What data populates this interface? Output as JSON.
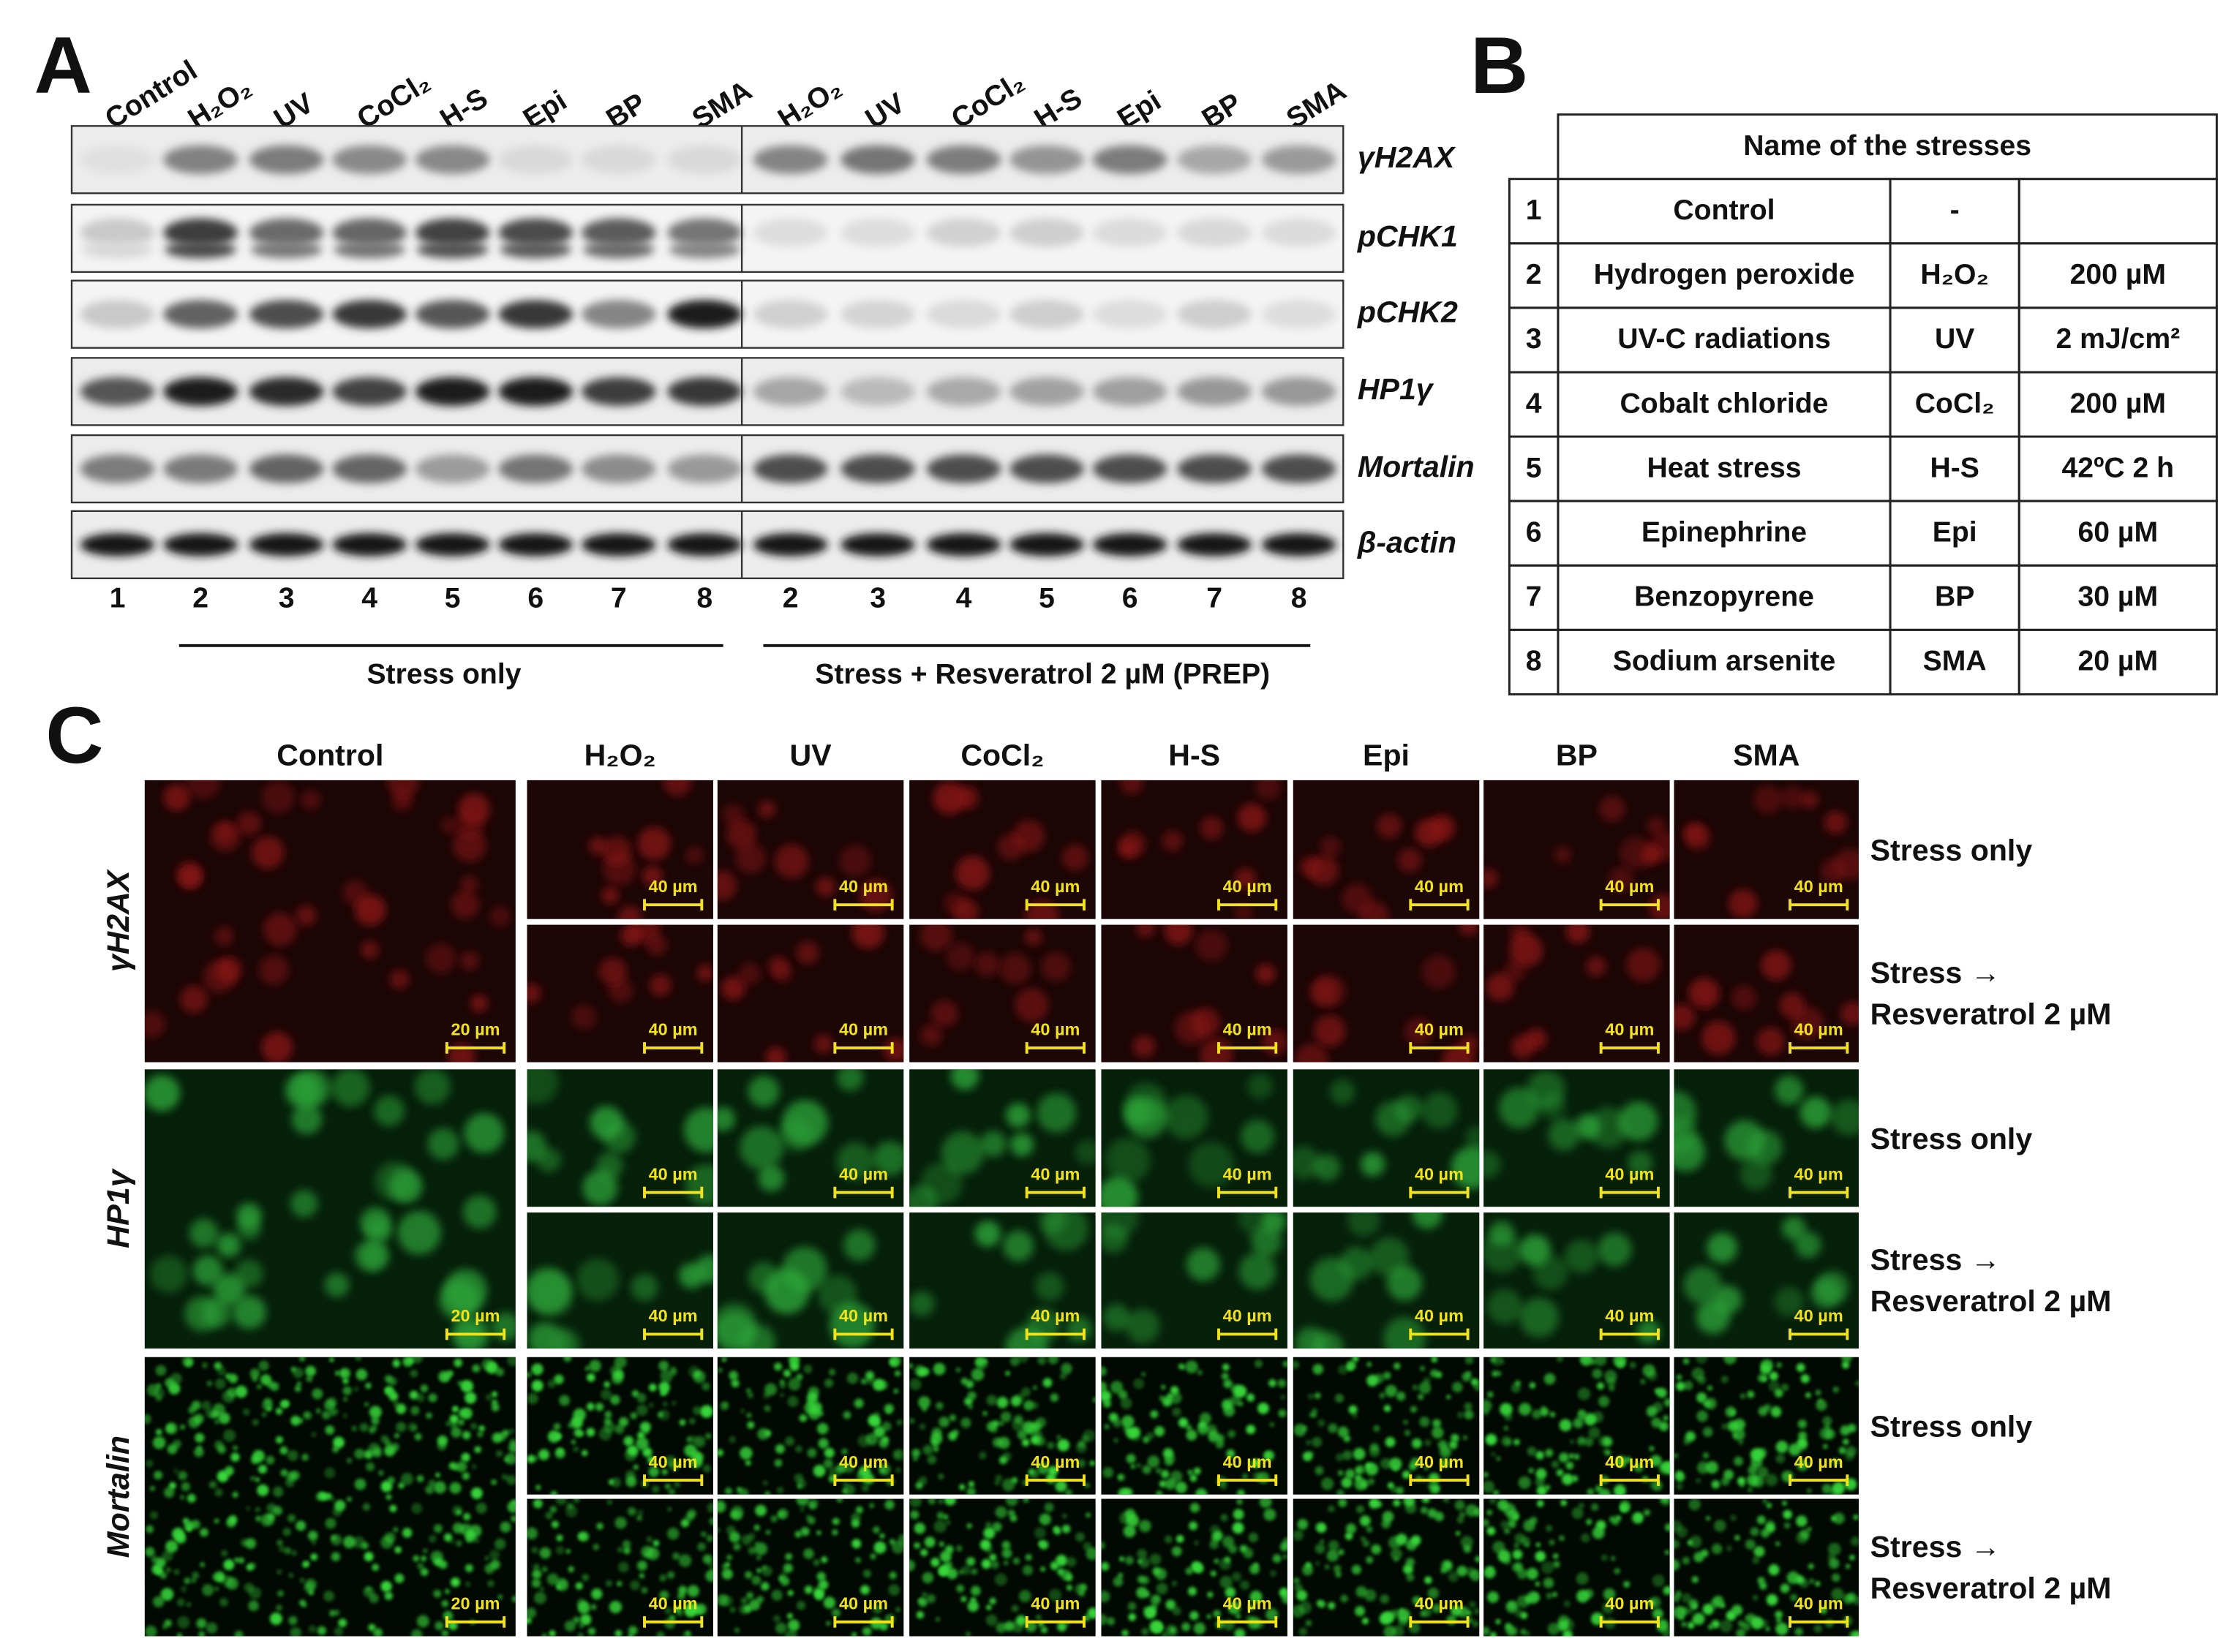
{
  "panel_a": {
    "label": "A",
    "lanes": [
      "Control",
      "H₂O₂",
      "UV",
      "CoCl₂",
      "H-S",
      "Epi",
      "BP",
      "SMA",
      "H₂O₂",
      "UV",
      "CoCl₂",
      "H-S",
      "Epi",
      "BP",
      "SMA"
    ],
    "blots": [
      "γH2AX",
      "pCHK1",
      "pCHK2",
      "HP1γ",
      "Mortalin",
      "β-actin"
    ],
    "lane_numbers": [
      1,
      2,
      3,
      4,
      5,
      6,
      7,
      8,
      2,
      3,
      4,
      5,
      6,
      7,
      8
    ],
    "groups": [
      "Stress only",
      "Stress + Resveratrol 2 µM (PREP)"
    ]
  },
  "panel_b": {
    "label": "B",
    "table": {
      "title": "Name of the stresses",
      "rows": [
        [
          "1",
          "Control",
          "-"
        ],
        [
          "2",
          "Hydrogen peroxide",
          "H₂O₂",
          "200 µM"
        ],
        [
          "3",
          "UV-C radiations",
          "UV",
          "2 mJ/cm²"
        ],
        [
          "4",
          "Cobalt chloride",
          "CoCl₂",
          "200 µM"
        ],
        [
          "5",
          "Heat stress",
          "H-S",
          "42ºC 2 h"
        ],
        [
          "6",
          "Epinephrine",
          "Epi",
          "60 µM"
        ],
        [
          "7",
          "Benzopyrene",
          "BP",
          "30 µM"
        ],
        [
          "8",
          "Sodium arsenite",
          "SMA",
          "20 µM"
        ]
      ]
    }
  },
  "panel_c": {
    "label": "C",
    "columns": [
      "Control",
      "H₂O₂",
      "UV",
      "CoCl₂",
      "H-S",
      "Epi",
      "BP",
      "SMA"
    ],
    "markers": [
      "γH2AX",
      "HP1γ",
      "Mortalin"
    ],
    "conditions": {
      "stress": "Stress only",
      "recovery": [
        "Stress →",
        "Resveratrol 2 µM"
      ]
    },
    "scale_bars": {
      "control": "20 µm",
      "treated": "40 µm"
    }
  }
}
